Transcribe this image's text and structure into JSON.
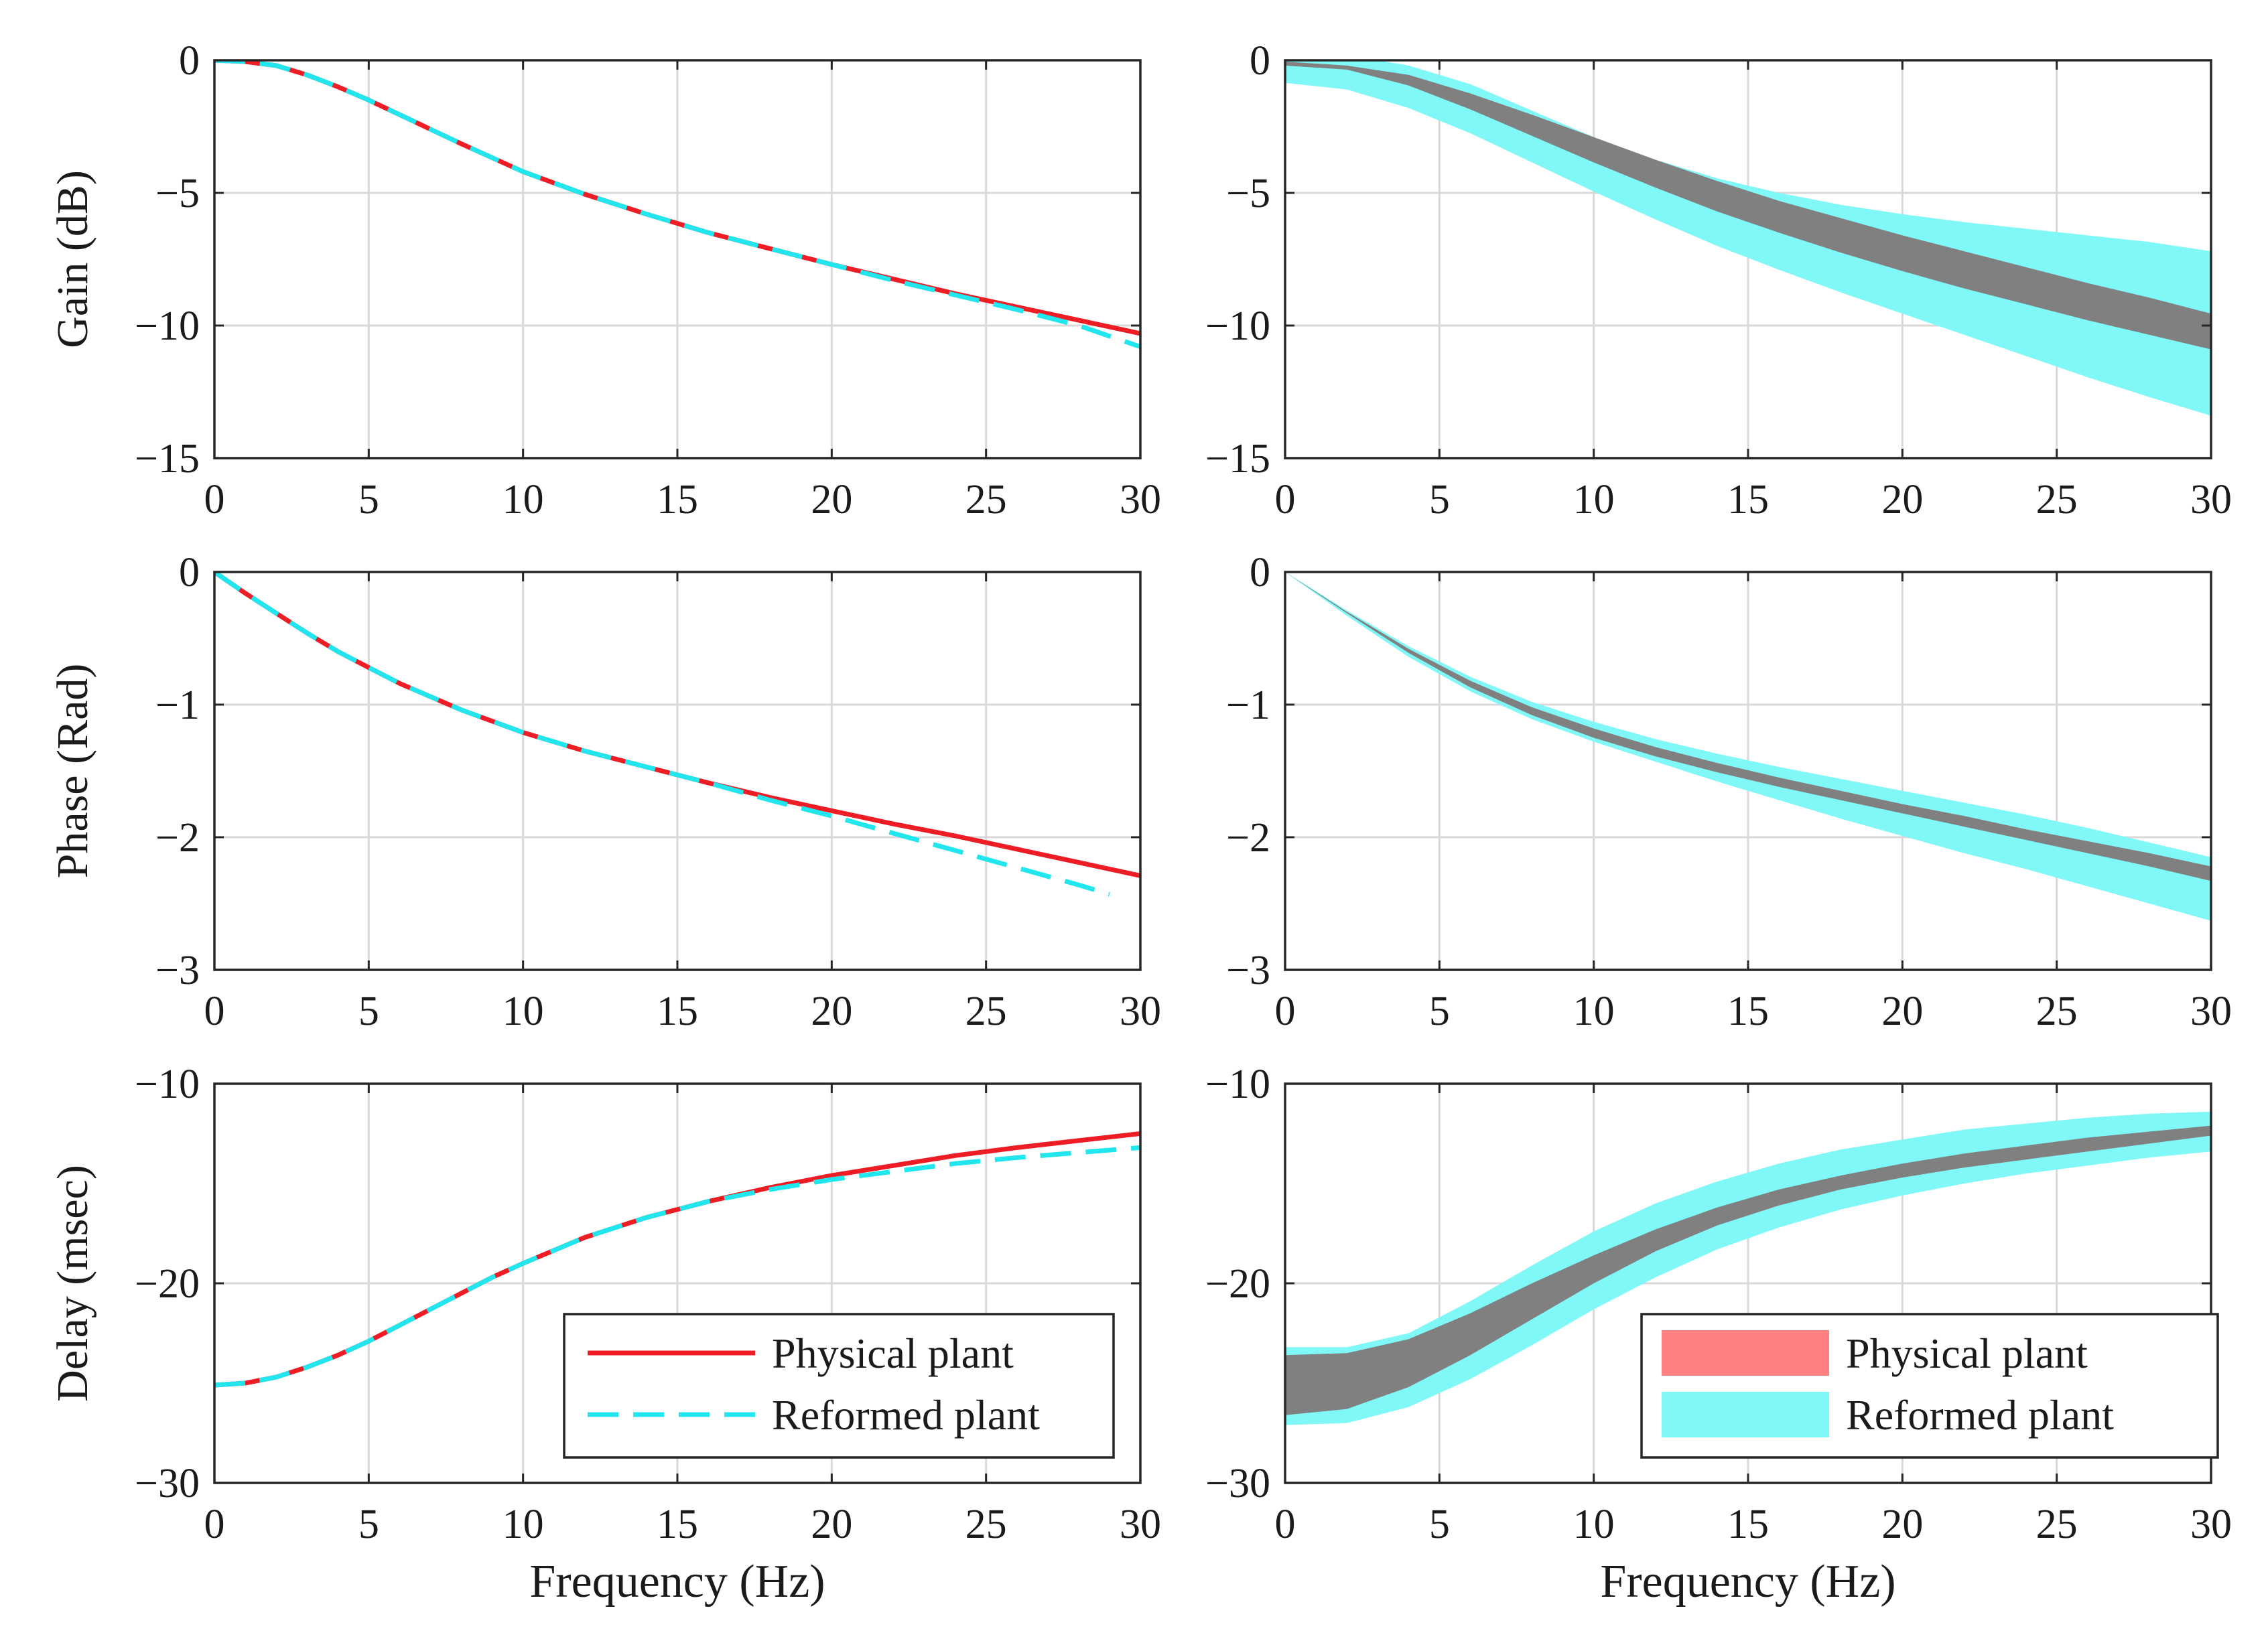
{
  "colors": {
    "physical": "#ee1c25",
    "reformed": "#22e6ee",
    "physical_band": "#ff8080",
    "reformed_band": "#80f8f8",
    "overlap_band": "#808080"
  },
  "chart_data": [
    {
      "id": "gain-line",
      "type": "line",
      "title": "",
      "xlabel": "",
      "ylabel": "Gain (dB)",
      "xlim": [
        0,
        30
      ],
      "ylim": [
        -15,
        0
      ],
      "xticks": [
        0,
        5,
        10,
        15,
        20,
        25,
        30
      ],
      "xtick_labels": [
        "0",
        "5",
        "10",
        "15",
        "20",
        "25",
        "30"
      ],
      "yticks": [
        0,
        -5,
        -10,
        -15
      ],
      "ytick_labels": [
        "0",
        "−5",
        "−10",
        "−15"
      ],
      "grid": true,
      "series": [
        {
          "name": "Physical plant",
          "style": "solid",
          "color": "#ee1c25",
          "x": [
            0,
            1,
            2,
            3,
            4,
            5,
            6,
            7,
            8,
            10,
            12,
            14,
            16,
            18,
            20,
            22,
            24,
            26,
            28,
            30
          ],
          "values": [
            0,
            -0.05,
            -0.2,
            -0.55,
            -1.0,
            -1.5,
            -2.05,
            -2.6,
            -3.15,
            -4.2,
            -5.05,
            -5.8,
            -6.5,
            -7.1,
            -7.7,
            -8.25,
            -8.8,
            -9.3,
            -9.8,
            -10.3
          ]
        },
        {
          "name": "Reformed plant",
          "style": "dashed",
          "color": "#22e6ee",
          "x": [
            0,
            1,
            2,
            3,
            4,
            5,
            6,
            7,
            8,
            10,
            12,
            14,
            16,
            18,
            20,
            22,
            24,
            26,
            28,
            30
          ],
          "values": [
            0,
            -0.05,
            -0.2,
            -0.55,
            -1.0,
            -1.5,
            -2.05,
            -2.6,
            -3.15,
            -4.2,
            -5.05,
            -5.8,
            -6.5,
            -7.1,
            -7.7,
            -8.3,
            -8.85,
            -9.4,
            -10.0,
            -10.8
          ]
        }
      ]
    },
    {
      "id": "gain-band",
      "type": "area",
      "title": "",
      "xlabel": "",
      "ylabel": "",
      "xlim": [
        0,
        30
      ],
      "ylim": [
        -15,
        0
      ],
      "xticks": [
        0,
        5,
        10,
        15,
        20,
        25,
        30
      ],
      "xtick_labels": [
        "0",
        "5",
        "10",
        "15",
        "20",
        "25",
        "30"
      ],
      "yticks": [
        0,
        -5,
        -10,
        -15
      ],
      "ytick_labels": [
        "0",
        "−5",
        "−10",
        "−15"
      ],
      "grid": true,
      "series": [
        {
          "name": "Reformed plant",
          "color": "#80f8f8",
          "x": [
            0,
            2,
            4,
            6,
            8,
            10,
            12,
            14,
            16,
            18,
            20,
            22,
            24,
            26,
            28,
            30
          ],
          "upper": [
            0.3,
            0.2,
            -0.2,
            -0.9,
            -1.9,
            -2.9,
            -3.75,
            -4.45,
            -5.0,
            -5.45,
            -5.8,
            -6.1,
            -6.35,
            -6.6,
            -6.85,
            -7.2
          ],
          "lower": [
            -0.85,
            -1.1,
            -1.8,
            -2.75,
            -3.85,
            -4.95,
            -6.0,
            -7.0,
            -7.9,
            -8.75,
            -9.55,
            -10.35,
            -11.15,
            -11.95,
            -12.7,
            -13.4
          ]
        },
        {
          "name": "Physical plant",
          "color": "#808080",
          "x": [
            0,
            2,
            4,
            6,
            8,
            10,
            12,
            14,
            16,
            18,
            20,
            22,
            24,
            26,
            28,
            30
          ],
          "upper": [
            -0.05,
            -0.2,
            -0.55,
            -1.25,
            -2.05,
            -2.9,
            -3.75,
            -4.55,
            -5.3,
            -5.95,
            -6.6,
            -7.2,
            -7.8,
            -8.4,
            -8.95,
            -9.55
          ],
          "lower": [
            -0.2,
            -0.35,
            -0.95,
            -1.85,
            -2.85,
            -3.85,
            -4.8,
            -5.7,
            -6.5,
            -7.25,
            -7.95,
            -8.6,
            -9.2,
            -9.8,
            -10.35,
            -10.9
          ]
        }
      ]
    },
    {
      "id": "phase-line",
      "type": "line",
      "title": "",
      "xlabel": "",
      "ylabel": "Phase (Rad)",
      "xlim": [
        0,
        30
      ],
      "ylim": [
        -3,
        0
      ],
      "xticks": [
        0,
        5,
        10,
        15,
        20,
        25,
        30
      ],
      "xtick_labels": [
        "0",
        "5",
        "10",
        "15",
        "20",
        "25",
        "30"
      ],
      "yticks": [
        0,
        -1,
        -2,
        -3
      ],
      "ytick_labels": [
        "0",
        "−1",
        "−2",
        "−3"
      ],
      "grid": true,
      "series": [
        {
          "name": "Physical plant",
          "style": "solid",
          "color": "#ee1c25",
          "x": [
            0,
            1,
            2,
            3,
            4,
            5,
            6,
            8,
            10,
            12,
            14,
            16,
            18,
            20,
            22,
            24,
            26,
            28,
            30
          ],
          "values": [
            0,
            -0.16,
            -0.31,
            -0.46,
            -0.6,
            -0.72,
            -0.84,
            -1.04,
            -1.21,
            -1.35,
            -1.47,
            -1.59,
            -1.7,
            -1.8,
            -1.9,
            -1.99,
            -2.09,
            -2.19,
            -2.29
          ]
        },
        {
          "name": "Reformed plant",
          "style": "dashed",
          "color": "#22e6ee",
          "x": [
            0,
            1,
            2,
            3,
            4,
            5,
            6,
            8,
            10,
            12,
            14,
            16,
            18,
            20,
            22,
            24,
            26,
            28,
            29
          ],
          "values": [
            0,
            -0.16,
            -0.31,
            -0.46,
            -0.6,
            -0.72,
            -0.84,
            -1.04,
            -1.21,
            -1.35,
            -1.47,
            -1.59,
            -1.72,
            -1.84,
            -1.97,
            -2.1,
            -2.23,
            -2.36,
            -2.43
          ]
        }
      ]
    },
    {
      "id": "phase-band",
      "type": "area",
      "title": "",
      "xlabel": "",
      "ylabel": "",
      "xlim": [
        0,
        30
      ],
      "ylim": [
        -3,
        0
      ],
      "xticks": [
        0,
        5,
        10,
        15,
        20,
        25,
        30
      ],
      "xtick_labels": [
        "0",
        "5",
        "10",
        "15",
        "20",
        "25",
        "30"
      ],
      "yticks": [
        0,
        -1,
        -2,
        -3
      ],
      "ytick_labels": [
        "0",
        "−1",
        "−2",
        "−3"
      ],
      "grid": true,
      "series": [
        {
          "name": "Reformed plant",
          "color": "#80f8f8",
          "x": [
            0,
            2,
            4,
            6,
            8,
            10,
            12,
            14,
            16,
            18,
            20,
            22,
            24,
            26,
            28,
            30
          ],
          "upper": [
            0,
            -0.29,
            -0.56,
            -0.79,
            -0.98,
            -1.13,
            -1.26,
            -1.37,
            -1.47,
            -1.56,
            -1.65,
            -1.74,
            -1.83,
            -1.93,
            -2.04,
            -2.15
          ],
          "lower": [
            0,
            -0.33,
            -0.64,
            -0.9,
            -1.11,
            -1.28,
            -1.43,
            -1.58,
            -1.72,
            -1.86,
            -1.99,
            -2.12,
            -2.24,
            -2.37,
            -2.5,
            -2.63
          ]
        },
        {
          "name": "Physical plant",
          "color": "#808080",
          "x": [
            0,
            2,
            4,
            6,
            8,
            10,
            12,
            14,
            16,
            18,
            20,
            22,
            24,
            26,
            28,
            30
          ],
          "upper": [
            0,
            -0.3,
            -0.58,
            -0.82,
            -1.02,
            -1.18,
            -1.32,
            -1.44,
            -1.55,
            -1.65,
            -1.75,
            -1.84,
            -1.94,
            -2.03,
            -2.12,
            -2.22
          ],
          "lower": [
            0,
            -0.31,
            -0.61,
            -0.87,
            -1.08,
            -1.25,
            -1.39,
            -1.51,
            -1.62,
            -1.72,
            -1.82,
            -1.92,
            -2.02,
            -2.12,
            -2.22,
            -2.33
          ]
        }
      ]
    },
    {
      "id": "delay-line",
      "type": "line",
      "title": "",
      "xlabel": "Frequency (Hz)",
      "ylabel": "Delay (msec)",
      "xlim": [
        0,
        30
      ],
      "ylim": [
        -30,
        -10
      ],
      "xticks": [
        0,
        5,
        10,
        15,
        20,
        25,
        30
      ],
      "xtick_labels": [
        "0",
        "5",
        "10",
        "15",
        "20",
        "25",
        "30"
      ],
      "yticks": [
        -10,
        -20,
        -30
      ],
      "ytick_labels": [
        "−10",
        "−20",
        "−30"
      ],
      "grid": true,
      "legend": {
        "position": "bottom-right",
        "entries": [
          "Physical plant",
          "Reformed plant"
        ]
      },
      "series": [
        {
          "name": "Physical plant",
          "style": "solid",
          "color": "#ee1c25",
          "x": [
            0,
            1,
            2,
            3,
            4,
            5,
            6,
            7,
            8,
            9,
            10,
            12,
            14,
            16,
            18,
            20,
            22,
            24,
            26,
            28,
            30
          ],
          "values": [
            -25.1,
            -25.0,
            -24.7,
            -24.2,
            -23.6,
            -22.9,
            -22.1,
            -21.3,
            -20.5,
            -19.7,
            -19.0,
            -17.7,
            -16.7,
            -15.9,
            -15.2,
            -14.6,
            -14.1,
            -13.6,
            -13.2,
            -12.85,
            -12.5
          ]
        },
        {
          "name": "Reformed plant",
          "style": "dashed",
          "color": "#22e6ee",
          "x": [
            0,
            1,
            2,
            3,
            4,
            5,
            6,
            7,
            8,
            9,
            10,
            12,
            14,
            16,
            18,
            20,
            22,
            24,
            26,
            28,
            30
          ],
          "values": [
            -25.1,
            -25.0,
            -24.7,
            -24.2,
            -23.6,
            -22.9,
            -22.1,
            -21.3,
            -20.5,
            -19.7,
            -19.0,
            -17.7,
            -16.7,
            -15.9,
            -15.3,
            -14.8,
            -14.4,
            -14.0,
            -13.7,
            -13.45,
            -13.2
          ]
        }
      ]
    },
    {
      "id": "delay-band",
      "type": "area",
      "title": "",
      "xlabel": "Frequency (Hz)",
      "ylabel": "",
      "xlim": [
        0,
        30
      ],
      "ylim": [
        -30,
        -10
      ],
      "xticks": [
        0,
        5,
        10,
        15,
        20,
        25,
        30
      ],
      "xtick_labels": [
        "0",
        "5",
        "10",
        "15",
        "20",
        "25",
        "30"
      ],
      "yticks": [
        -10,
        -20,
        -30
      ],
      "ytick_labels": [
        "−10",
        "−20",
        "−30"
      ],
      "grid": true,
      "legend": {
        "position": "bottom-right",
        "entries": [
          "Physical plant",
          "Reformed plant"
        ]
      },
      "series": [
        {
          "name": "Reformed plant",
          "color": "#80f8f8",
          "x": [
            0,
            2,
            4,
            6,
            8,
            10,
            12,
            14,
            16,
            18,
            20,
            22,
            24,
            26,
            28,
            30
          ],
          "upper": [
            -23.2,
            -23.2,
            -22.5,
            -20.9,
            -19.1,
            -17.4,
            -16.0,
            -14.9,
            -14.0,
            -13.3,
            -12.8,
            -12.3,
            -12.0,
            -11.7,
            -11.5,
            -11.4
          ],
          "lower": [
            -27.1,
            -27.0,
            -26.2,
            -24.8,
            -23.1,
            -21.3,
            -19.7,
            -18.3,
            -17.2,
            -16.3,
            -15.6,
            -15.0,
            -14.5,
            -14.1,
            -13.7,
            -13.4
          ]
        },
        {
          "name": "Physical plant",
          "color": "#808080",
          "x": [
            0,
            2,
            4,
            6,
            8,
            10,
            12,
            14,
            16,
            18,
            20,
            22,
            24,
            26,
            28,
            30
          ],
          "upper": [
            -23.6,
            -23.5,
            -22.8,
            -21.5,
            -20.0,
            -18.6,
            -17.3,
            -16.2,
            -15.3,
            -14.6,
            -14.0,
            -13.5,
            -13.1,
            -12.7,
            -12.4,
            -12.1
          ],
          "lower": [
            -26.6,
            -26.3,
            -25.2,
            -23.6,
            -21.8,
            -20.0,
            -18.4,
            -17.1,
            -16.1,
            -15.3,
            -14.7,
            -14.2,
            -13.8,
            -13.4,
            -13.0,
            -12.6
          ]
        }
      ]
    }
  ]
}
